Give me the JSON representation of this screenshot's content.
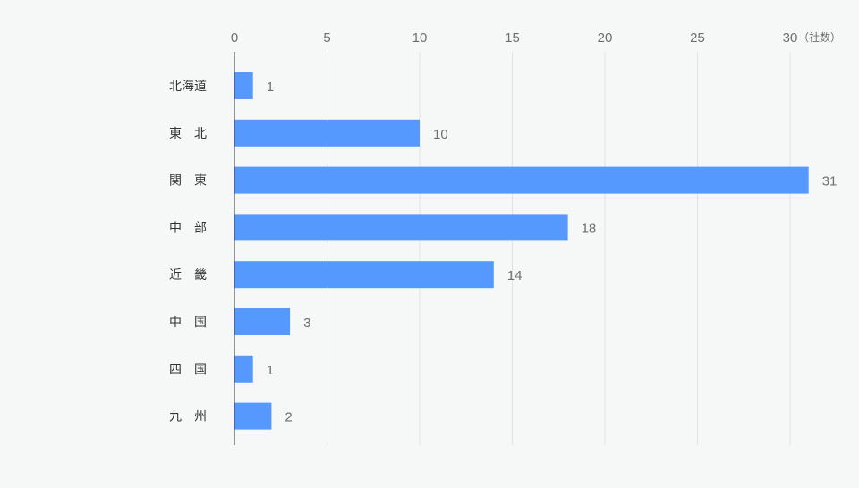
{
  "chart_data": {
    "type": "bar",
    "orientation": "horizontal",
    "categories": [
      "北海道",
      "東　北",
      "関　東",
      "中　部",
      "近　畿",
      "中　国",
      "四　国",
      "九　州"
    ],
    "values": [
      1,
      10,
      31,
      18,
      14,
      3,
      1,
      2
    ],
    "xlim": [
      0,
      31
    ],
    "xticks": [
      0,
      5,
      10,
      15,
      20,
      25,
      30
    ],
    "unit_label": "（社数）",
    "axis_position": "top",
    "grid": true,
    "bar_color": "#5599ff"
  }
}
